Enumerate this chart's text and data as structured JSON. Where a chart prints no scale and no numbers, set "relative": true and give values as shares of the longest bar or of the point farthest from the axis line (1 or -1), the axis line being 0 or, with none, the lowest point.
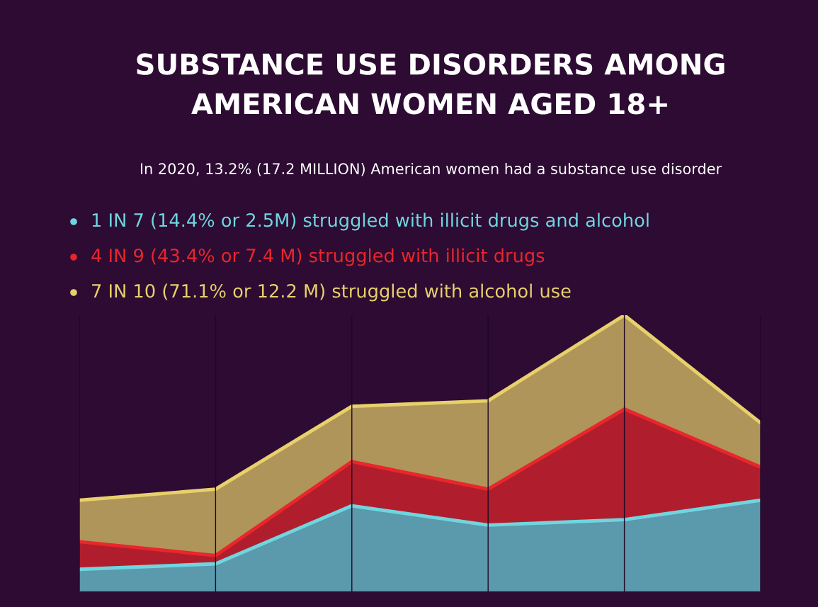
{
  "chart_data": {
    "type": "area",
    "relative": true,
    "title": "SUBSTANCE USE DISORDERS AMONG\nAMERICAN WOMEN AGED 18+",
    "subtitle": "In 2020, 13.2% (17.2 MILLION) American women had a substance use disorder",
    "categories": [
      null,
      null,
      null,
      null,
      null,
      null
    ],
    "grid": "x",
    "legend": "top left",
    "series": [
      {
        "name": "1 IN 7 (14.4% or 2.5M) struggled with illicit drugs and alcohol",
        "color": "#6fd6e0",
        "values": [
          0.08,
          0.1,
          0.31,
          0.24,
          0.26,
          0.33
        ]
      },
      {
        "name": "4 IN 9 (43.4% or 7.4 M) struggled with illicit drugs",
        "color": "#e8262b",
        "values": [
          0.18,
          0.13,
          0.47,
          0.37,
          0.66,
          0.45
        ]
      },
      {
        "name": "7 IN 10 (71.1% or 12.2 M) struggled with alcohol use",
        "color": "#e8d06a",
        "values": [
          0.33,
          0.37,
          0.67,
          0.69,
          1,
          0.61
        ]
      }
    ]
  }
}
